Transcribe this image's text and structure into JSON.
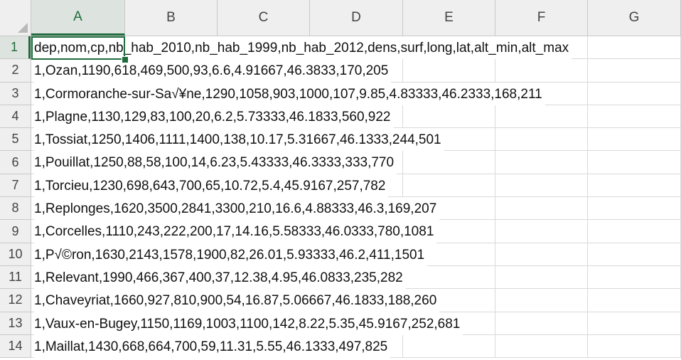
{
  "columns": [
    "A",
    "B",
    "C",
    "D",
    "E",
    "F",
    "G"
  ],
  "selected": {
    "column": "A",
    "row": "1"
  },
  "rows": [
    {
      "num": "1",
      "text": "dep,nom,cp,nb_hab_2010,nb_hab_1999,nb_hab_2012,dens,surf,long,lat,alt_min,alt_max"
    },
    {
      "num": "2",
      "text": "1,Ozan,1190,618,469,500,93,6.6,4.91667,46.3833,170,205"
    },
    {
      "num": "3",
      "text": "1,Cormoranche-sur-Sa√¥ne,1290,1058,903,1000,107,9.85,4.83333,46.2333,168,211"
    },
    {
      "num": "4",
      "text": "1,Plagne,1130,129,83,100,20,6.2,5.73333,46.1833,560,922"
    },
    {
      "num": "5",
      "text": "1,Tossiat,1250,1406,1111,1400,138,10.17,5.31667,46.1333,244,501"
    },
    {
      "num": "6",
      "text": "1,Pouillat,1250,88,58,100,14,6.23,5.43333,46.3333,333,770"
    },
    {
      "num": "7",
      "text": "1,Torcieu,1230,698,643,700,65,10.72,5.4,45.9167,257,782"
    },
    {
      "num": "8",
      "text": "1,Replonges,1620,3500,2841,3300,210,16.6,4.88333,46.3,169,207"
    },
    {
      "num": "9",
      "text": "1,Corcelles,1110,243,222,200,17,14.16,5.58333,46.0333,780,1081"
    },
    {
      "num": "10",
      "text": "1,P√©ron,1630,2143,1578,1900,82,26.01,5.93333,46.2,411,1501"
    },
    {
      "num": "11",
      "text": "1,Relevant,1990,466,367,400,37,12.38,4.95,46.0833,235,282"
    },
    {
      "num": "12",
      "text": "1,Chaveyriat,1660,927,810,900,54,16.87,5.06667,46.1833,188,260"
    },
    {
      "num": "13",
      "text": "1,Vaux-en-Bugey,1150,1169,1003,1100,142,8.22,5.35,45.9167,252,681"
    },
    {
      "num": "14",
      "text": "1,Maillat,1430,668,664,700,59,11.31,5.55,46.1333,497,825"
    }
  ]
}
